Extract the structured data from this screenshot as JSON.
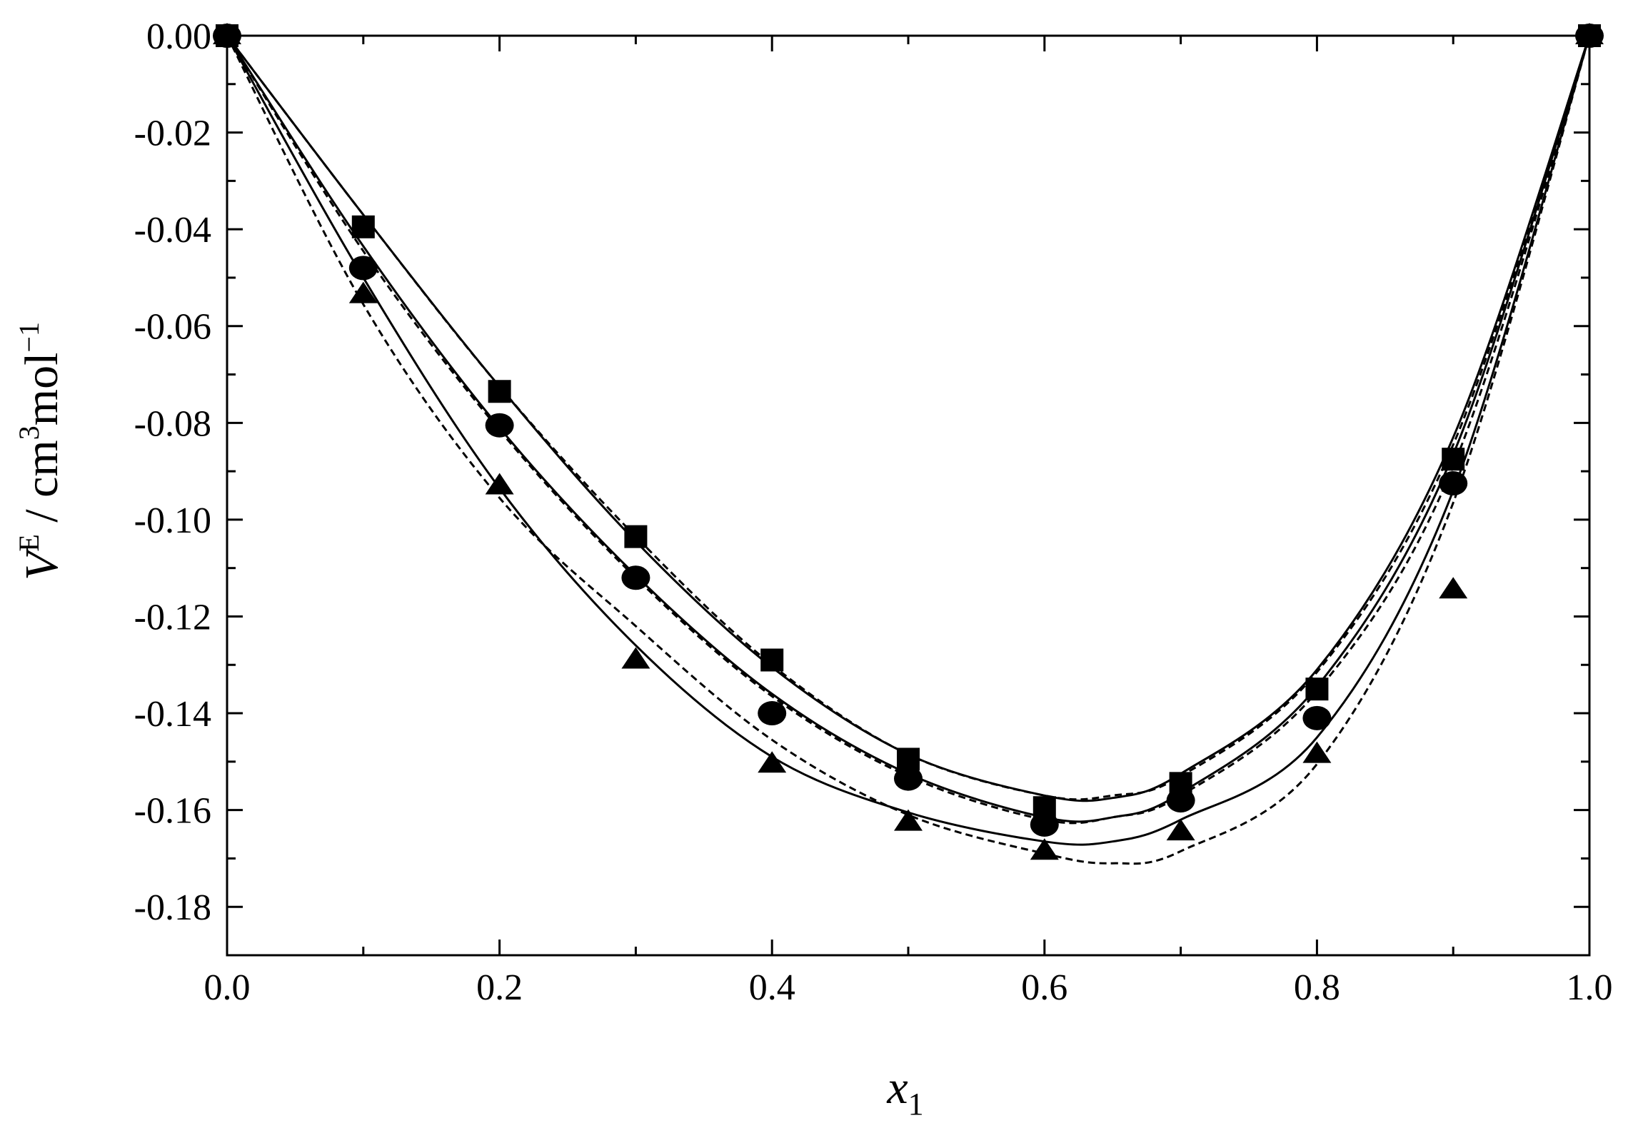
{
  "chart_data": {
    "type": "scatter",
    "xlabel": "x",
    "xlabel_subscript": "1",
    "ylabel_parts": {
      "v": "V",
      "e": "E",
      "unit_a": " / cm",
      "unit_sup3": "3",
      "unit_b": "mol",
      "unit_sup_neg1": "−1"
    },
    "xlim": [
      0.0,
      1.0
    ],
    "ylim": [
      -0.19,
      0.0
    ],
    "x_ticks": [
      "0.0",
      "0.2",
      "0.4",
      "0.6",
      "0.8",
      "1.0"
    ],
    "y_ticks": [
      "0.00",
      "-0.02",
      "-0.04",
      "-0.06",
      "-0.08",
      "-0.10",
      "-0.12",
      "-0.14",
      "-0.16",
      "-0.18"
    ],
    "grid": false,
    "series": [
      {
        "marker": "square",
        "points": [
          [
            0.0,
            0.0
          ],
          [
            0.1,
            -0.0395
          ],
          [
            0.2,
            -0.0735
          ],
          [
            0.3,
            -0.1035
          ],
          [
            0.4,
            -0.129
          ],
          [
            0.5,
            -0.1495
          ],
          [
            0.6,
            -0.1595
          ],
          [
            0.7,
            -0.1545
          ],
          [
            0.8,
            -0.135
          ],
          [
            0.9,
            -0.0875
          ],
          [
            1.0,
            0.0
          ]
        ]
      },
      {
        "marker": "circle",
        "points": [
          [
            0.0,
            0.0
          ],
          [
            0.1,
            -0.048
          ],
          [
            0.2,
            -0.0805
          ],
          [
            0.3,
            -0.112
          ],
          [
            0.4,
            -0.14
          ],
          [
            0.5,
            -0.1535
          ],
          [
            0.6,
            -0.163
          ],
          [
            0.7,
            -0.158
          ],
          [
            0.8,
            -0.141
          ],
          [
            0.9,
            -0.0925
          ],
          [
            1.0,
            0.0
          ]
        ]
      },
      {
        "marker": "triangle",
        "points": [
          [
            0.0,
            0.0
          ],
          [
            0.1,
            -0.0535
          ],
          [
            0.2,
            -0.093
          ],
          [
            0.3,
            -0.129
          ],
          [
            0.4,
            -0.1505
          ],
          [
            0.5,
            -0.1625
          ],
          [
            0.6,
            -0.1685
          ],
          [
            0.7,
            -0.1645
          ],
          [
            0.8,
            -0.1485
          ],
          [
            0.9,
            -0.1145
          ],
          [
            1.0,
            0.0
          ]
        ]
      }
    ],
    "fit_curves": [
      {
        "style": "solid",
        "points": [
          [
            0.0,
            0.0
          ],
          [
            0.1,
            -0.037
          ],
          [
            0.2,
            -0.0725
          ],
          [
            0.3,
            -0.1045
          ],
          [
            0.4,
            -0.1305
          ],
          [
            0.5,
            -0.1485
          ],
          [
            0.6,
            -0.157
          ],
          [
            0.65,
            -0.1575
          ],
          [
            0.7,
            -0.1525
          ],
          [
            0.8,
            -0.131
          ],
          [
            0.9,
            -0.083
          ],
          [
            1.0,
            0.0
          ]
        ]
      },
      {
        "style": "dashed",
        "points": [
          [
            0.0,
            0.0
          ],
          [
            0.1,
            -0.037
          ],
          [
            0.2,
            -0.0725
          ],
          [
            0.3,
            -0.1035
          ],
          [
            0.4,
            -0.13
          ],
          [
            0.5,
            -0.1485
          ],
          [
            0.6,
            -0.157
          ],
          [
            0.65,
            -0.157
          ],
          [
            0.7,
            -0.153
          ],
          [
            0.8,
            -0.1315
          ],
          [
            0.9,
            -0.0845
          ],
          [
            1.0,
            0.0
          ]
        ]
      },
      {
        "style": "solid",
        "points": [
          [
            0.0,
            0.0
          ],
          [
            0.1,
            -0.0435
          ],
          [
            0.2,
            -0.081
          ],
          [
            0.3,
            -0.1115
          ],
          [
            0.4,
            -0.136
          ],
          [
            0.5,
            -0.1525
          ],
          [
            0.6,
            -0.1615
          ],
          [
            0.65,
            -0.1615
          ],
          [
            0.7,
            -0.1565
          ],
          [
            0.8,
            -0.1345
          ],
          [
            0.9,
            -0.0865
          ],
          [
            1.0,
            0.0
          ]
        ]
      },
      {
        "style": "dashed",
        "points": [
          [
            0.0,
            0.0
          ],
          [
            0.1,
            -0.0445
          ],
          [
            0.2,
            -0.0815
          ],
          [
            0.3,
            -0.112
          ],
          [
            0.4,
            -0.1365
          ],
          [
            0.5,
            -0.153
          ],
          [
            0.6,
            -0.162
          ],
          [
            0.65,
            -0.1615
          ],
          [
            0.7,
            -0.157
          ],
          [
            0.8,
            -0.1355
          ],
          [
            0.9,
            -0.089
          ],
          [
            1.0,
            0.0
          ]
        ]
      },
      {
        "style": "solid",
        "points": [
          [
            0.0,
            0.0
          ],
          [
            0.1,
            -0.05
          ],
          [
            0.2,
            -0.0935
          ],
          [
            0.3,
            -0.126
          ],
          [
            0.4,
            -0.149
          ],
          [
            0.5,
            -0.1605
          ],
          [
            0.6,
            -0.1665
          ],
          [
            0.65,
            -0.1665
          ],
          [
            0.7,
            -0.162
          ],
          [
            0.8,
            -0.145
          ],
          [
            0.9,
            -0.094
          ],
          [
            1.0,
            0.0
          ]
        ]
      },
      {
        "style": "dashed",
        "points": [
          [
            0.0,
            0.0
          ],
          [
            0.1,
            -0.0555
          ],
          [
            0.2,
            -0.0955
          ],
          [
            0.3,
            -0.122
          ],
          [
            0.4,
            -0.1455
          ],
          [
            0.5,
            -0.161
          ],
          [
            0.6,
            -0.169
          ],
          [
            0.65,
            -0.171
          ],
          [
            0.7,
            -0.1685
          ],
          [
            0.8,
            -0.1505
          ],
          [
            0.9,
            -0.0965
          ],
          [
            1.0,
            0.0
          ]
        ]
      }
    ]
  }
}
